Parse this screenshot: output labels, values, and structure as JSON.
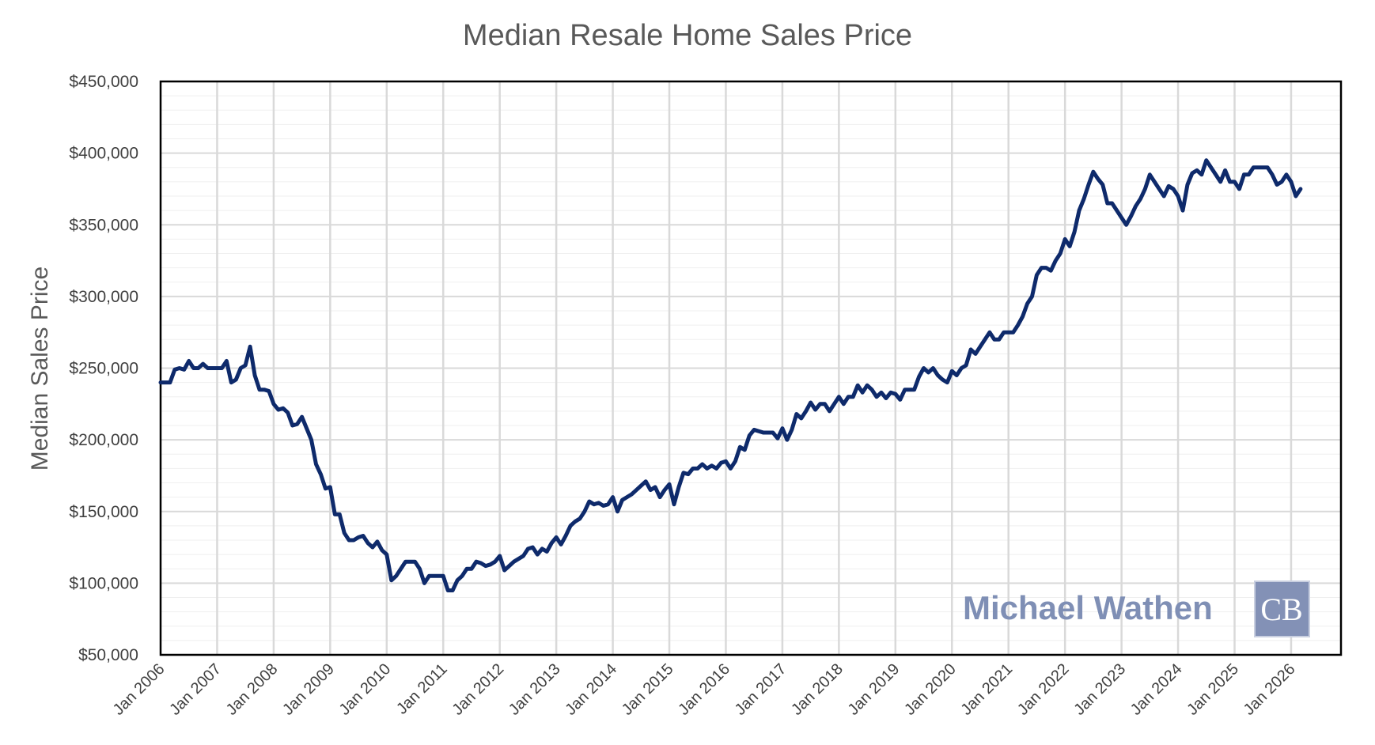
{
  "colors": {
    "line": "#0e2a6b",
    "grid": "#d9d9d9",
    "minor_grid": "#efefef",
    "frame": "#000000",
    "watermark": "#7f8fb5",
    "logo_bg": "#8391b6"
  },
  "branding": {
    "watermark_text": "Michael Wathen",
    "logo_text": "CB"
  },
  "chart_data": {
    "type": "line",
    "title": "Median Resale Home Sales Price",
    "ylabel": "Median Sales Price",
    "xlabel": "",
    "ylim": [
      50000,
      450000
    ],
    "y_ticks": [
      50000,
      100000,
      150000,
      200000,
      250000,
      300000,
      350000,
      400000,
      450000
    ],
    "y_tick_labels": [
      "$50,000",
      "$100,000",
      "$150,000",
      "$200,000",
      "$250,000",
      "$300,000",
      "$350,000",
      "$400,000",
      "$450,000"
    ],
    "x_tick_labels": [
      "Jan 2006",
      "Jan 2007",
      "Jan 2008",
      "Jan 2009",
      "Jan 2010",
      "Jan 2011",
      "Jan 2012",
      "Jan 2013",
      "Jan 2014",
      "Jan 2015",
      "Jan 2016",
      "Jan 2017",
      "Jan 2018",
      "Jan 2019",
      "Jan 2020",
      "Jan 2021",
      "Jan 2022",
      "Jan 2023",
      "Jan 2024",
      "Jan 2025",
      "Jan 2026"
    ],
    "x_start": "Jan 2006",
    "interval": "monthly",
    "series": [
      {
        "name": "Median Sales Price",
        "values": [
          240000,
          240000,
          240000,
          249000,
          250000,
          249000,
          255000,
          250000,
          250000,
          253000,
          250000,
          250000,
          250000,
          250000,
          255000,
          240000,
          242000,
          250000,
          252000,
          265000,
          245000,
          235000,
          235000,
          234000,
          225000,
          221000,
          222000,
          219000,
          210000,
          211000,
          216000,
          208000,
          200000,
          183000,
          176000,
          166000,
          167000,
          148000,
          148000,
          135000,
          130000,
          130000,
          132000,
          133000,
          128000,
          125000,
          129000,
          123000,
          120000,
          102000,
          105000,
          110000,
          115000,
          115000,
          115000,
          110000,
          100000,
          105000,
          105000,
          105000,
          105000,
          95000,
          95000,
          102000,
          105000,
          110000,
          110000,
          115000,
          114000,
          112000,
          113000,
          115000,
          119000,
          109000,
          112000,
          115000,
          117000,
          119000,
          124000,
          125000,
          120000,
          124000,
          122000,
          128000,
          132000,
          127000,
          133000,
          140000,
          143000,
          145000,
          150000,
          157000,
          155000,
          156000,
          154000,
          155000,
          160000,
          150000,
          158000,
          160000,
          162000,
          165000,
          168000,
          171000,
          165000,
          167000,
          160000,
          165000,
          169000,
          155000,
          167000,
          177000,
          176000,
          180000,
          180000,
          183000,
          180000,
          182000,
          180000,
          184000,
          185000,
          180000,
          185000,
          195000,
          193000,
          203000,
          207000,
          206000,
          205000,
          205000,
          205000,
          201000,
          208000,
          200000,
          207000,
          218000,
          215000,
          220000,
          226000,
          221000,
          225000,
          225000,
          220000,
          225000,
          230000,
          225000,
          230000,
          230000,
          238000,
          233000,
          238000,
          235000,
          230000,
          233000,
          229000,
          233000,
          232000,
          228000,
          235000,
          235000,
          235000,
          244000,
          250000,
          247000,
          250000,
          245000,
          242000,
          240000,
          248000,
          245000,
          250000,
          252000,
          263000,
          260000,
          265000,
          270000,
          275000,
          270000,
          270000,
          275000,
          275000,
          275000,
          280000,
          286000,
          295000,
          300000,
          315000,
          320000,
          320000,
          318000,
          325000,
          330000,
          340000,
          335000,
          345000,
          360000,
          368000,
          378000,
          387000,
          382000,
          378000,
          365000,
          365000,
          360000,
          355000,
          350000,
          356000,
          363000,
          368000,
          375000,
          385000,
          380000,
          375000,
          370000,
          377000,
          375000,
          370000,
          360000,
          378000,
          386000,
          388000,
          385000,
          395000,
          390000,
          385000,
          380000,
          388000,
          380000,
          380000,
          375000,
          385000,
          385000,
          390000,
          390000,
          390000,
          390000,
          385000,
          378000,
          380000,
          385000,
          380000,
          370000,
          375000
        ]
      }
    ]
  }
}
